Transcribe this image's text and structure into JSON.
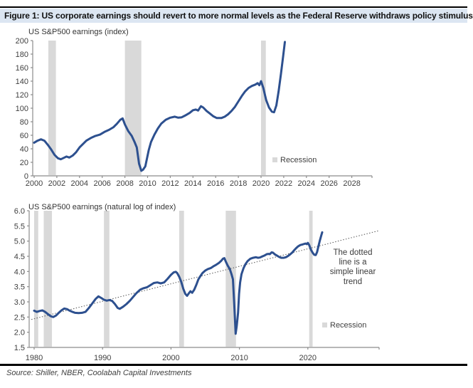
{
  "title": "Figure 1: US corporate earnings should revert to more normal levels as the Federal Reserve withdraws policy stimulus",
  "source": "Source: Shiller, NBER, Coolabah Capital Investments",
  "colors": {
    "line": "#2d508f",
    "recession": "#d9d9d9",
    "title_bg": "#dce6f2",
    "axis": "#8c8c8c",
    "text": "#3f3f3f",
    "trend": "#4d4d4d",
    "rule": "#000000"
  },
  "chart_data": [
    {
      "type": "line",
      "title": "US S&P500 earnings (index)",
      "legend": "Recession",
      "xlim": [
        2000,
        2029.8
      ],
      "ylim": [
        0,
        200
      ],
      "grid": false,
      "legend_position": "inside-right",
      "x_ticks": [
        "2000",
        "2002",
        "2004",
        "2006",
        "2008",
        "2010",
        "2012",
        "2014",
        "2016",
        "2018",
        "2020",
        "2022",
        "2024",
        "2026",
        "2028"
      ],
      "y_ticks": [
        "0",
        "20",
        "40",
        "60",
        "80",
        "100",
        "120",
        "140",
        "160",
        "180",
        "200"
      ],
      "recessions": [
        [
          2001.25,
          2001.92
        ],
        [
          2008.0,
          2009.45
        ],
        [
          2020.0,
          2020.42
        ]
      ],
      "series": [
        {
          "name": "US S&P500 earnings (index)",
          "points": [
            [
              2000.0,
              49
            ],
            [
              2000.3,
              52
            ],
            [
              2000.6,
              54
            ],
            [
              2000.9,
              52
            ],
            [
              2001.2,
              46
            ],
            [
              2001.5,
              39
            ],
            [
              2001.8,
              31
            ],
            [
              2002.1,
              26
            ],
            [
              2002.35,
              24.5
            ],
            [
              2002.6,
              26.5
            ],
            [
              2002.85,
              28.5
            ],
            [
              2003.1,
              27
            ],
            [
              2003.4,
              30
            ],
            [
              2003.7,
              35
            ],
            [
              2004.0,
              42
            ],
            [
              2004.3,
              47
            ],
            [
              2004.6,
              52
            ],
            [
              2005.0,
              56
            ],
            [
              2005.4,
              59
            ],
            [
              2005.8,
              61
            ],
            [
              2006.2,
              65
            ],
            [
              2006.6,
              68
            ],
            [
              2007.0,
              72
            ],
            [
              2007.3,
              77
            ],
            [
              2007.6,
              83
            ],
            [
              2007.8,
              85
            ],
            [
              2008.0,
              76
            ],
            [
              2008.3,
              66
            ],
            [
              2008.6,
              59
            ],
            [
              2008.85,
              50
            ],
            [
              2009.05,
              42
            ],
            [
              2009.25,
              18
            ],
            [
              2009.45,
              7.5
            ],
            [
              2009.6,
              9
            ],
            [
              2009.8,
              14
            ],
            [
              2009.95,
              26
            ],
            [
              2010.1,
              38
            ],
            [
              2010.3,
              50
            ],
            [
              2010.6,
              61
            ],
            [
              2010.9,
              70
            ],
            [
              2011.2,
              77
            ],
            [
              2011.6,
              83
            ],
            [
              2012.0,
              86
            ],
            [
              2012.4,
              87.5
            ],
            [
              2012.7,
              86
            ],
            [
              2013.0,
              86.5
            ],
            [
              2013.3,
              89
            ],
            [
              2013.7,
              93
            ],
            [
              2014.0,
              97
            ],
            [
              2014.25,
              98
            ],
            [
              2014.45,
              96.5
            ],
            [
              2014.7,
              103
            ],
            [
              2014.9,
              101
            ],
            [
              2015.2,
              96
            ],
            [
              2015.5,
              92
            ],
            [
              2015.8,
              88
            ],
            [
              2016.1,
              85.5
            ],
            [
              2016.5,
              85.5
            ],
            [
              2016.8,
              87.5
            ],
            [
              2017.1,
              91
            ],
            [
              2017.4,
              96
            ],
            [
              2017.7,
              102
            ],
            [
              2018.0,
              110
            ],
            [
              2018.3,
              118
            ],
            [
              2018.6,
              125
            ],
            [
              2018.9,
              130
            ],
            [
              2019.2,
              133
            ],
            [
              2019.5,
              135
            ],
            [
              2019.7,
              137
            ],
            [
              2019.85,
              134
            ],
            [
              2020.0,
              140
            ],
            [
              2020.2,
              130
            ],
            [
              2020.45,
              112
            ],
            [
              2020.7,
              101
            ],
            [
              2020.95,
              95
            ],
            [
              2021.15,
              94
            ],
            [
              2021.35,
              104
            ],
            [
              2021.55,
              125
            ],
            [
              2021.75,
              150
            ],
            [
              2021.95,
              177
            ],
            [
              2022.1,
              198
            ]
          ]
        }
      ]
    },
    {
      "type": "line",
      "title": "US S&P500 earnings (natural log of index)",
      "legend": "Recession",
      "annotation": [
        "The dotted",
        "line is a",
        "simple linear",
        "trend"
      ],
      "xlim": [
        1979.3,
        2030.5
      ],
      "ylim": [
        1.5,
        6.0
      ],
      "grid": false,
      "legend_position": "inside-right",
      "x_ticks": [
        "1980",
        "1990",
        "2000",
        "2010",
        "2020"
      ],
      "y_ticks": [
        "1.5",
        "2.0",
        "2.5",
        "3.0",
        "3.5",
        "4.0",
        "4.5",
        "5.0",
        "5.5",
        "6.0"
      ],
      "recessions": [
        [
          1980.0,
          1980.6
        ],
        [
          1981.4,
          1982.6
        ],
        [
          1990.2,
          1991.0
        ],
        [
          2001.2,
          2001.9
        ],
        [
          2008.0,
          2009.5
        ],
        [
          2020.2,
          2020.7
        ]
      ],
      "trend": {
        "label": "simple linear trend",
        "start": [
          1979.6,
          2.42
        ],
        "end": [
          2030.5,
          5.35
        ]
      },
      "series": [
        {
          "name": "US S&P500 earnings (natural log of index)",
          "points": [
            [
              1980.0,
              2.71
            ],
            [
              1980.4,
              2.67
            ],
            [
              1980.8,
              2.7
            ],
            [
              1981.2,
              2.72
            ],
            [
              1981.6,
              2.67
            ],
            [
              1982.0,
              2.6
            ],
            [
              1982.4,
              2.53
            ],
            [
              1982.8,
              2.5
            ],
            [
              1983.2,
              2.55
            ],
            [
              1983.6,
              2.64
            ],
            [
              1984.0,
              2.72
            ],
            [
              1984.4,
              2.78
            ],
            [
              1984.8,
              2.76
            ],
            [
              1985.2,
              2.71
            ],
            [
              1985.6,
              2.67
            ],
            [
              1986.0,
              2.64
            ],
            [
              1986.5,
              2.63
            ],
            [
              1987.0,
              2.64
            ],
            [
              1987.5,
              2.67
            ],
            [
              1988.0,
              2.8
            ],
            [
              1988.5,
              2.95
            ],
            [
              1989.0,
              3.1
            ],
            [
              1989.4,
              3.18
            ],
            [
              1989.8,
              3.13
            ],
            [
              1990.2,
              3.07
            ],
            [
              1990.6,
              3.04
            ],
            [
              1991.0,
              3.06
            ],
            [
              1991.4,
              3.03
            ],
            [
              1991.8,
              2.93
            ],
            [
              1992.2,
              2.8
            ],
            [
              1992.5,
              2.77
            ],
            [
              1993.0,
              2.84
            ],
            [
              1993.5,
              2.93
            ],
            [
              1994.0,
              3.04
            ],
            [
              1994.5,
              3.17
            ],
            [
              1995.0,
              3.3
            ],
            [
              1995.5,
              3.4
            ],
            [
              1996.0,
              3.45
            ],
            [
              1996.5,
              3.48
            ],
            [
              1997.0,
              3.55
            ],
            [
              1997.5,
              3.62
            ],
            [
              1998.0,
              3.64
            ],
            [
              1998.5,
              3.61
            ],
            [
              1999.0,
              3.64
            ],
            [
              1999.5,
              3.76
            ],
            [
              2000.0,
              3.89
            ],
            [
              2000.4,
              3.97
            ],
            [
              2000.7,
              3.99
            ],
            [
              2000.9,
              3.95
            ],
            [
              2001.2,
              3.83
            ],
            [
              2001.5,
              3.66
            ],
            [
              2001.8,
              3.43
            ],
            [
              2002.1,
              3.26
            ],
            [
              2002.35,
              3.2
            ],
            [
              2002.6,
              3.28
            ],
            [
              2002.85,
              3.35
            ],
            [
              2003.1,
              3.3
            ],
            [
              2003.4,
              3.4
            ],
            [
              2003.7,
              3.56
            ],
            [
              2004.0,
              3.74
            ],
            [
              2004.3,
              3.85
            ],
            [
              2004.6,
              3.95
            ],
            [
              2005.0,
              4.03
            ],
            [
              2005.4,
              4.08
            ],
            [
              2005.8,
              4.11
            ],
            [
              2006.2,
              4.17
            ],
            [
              2006.6,
              4.22
            ],
            [
              2007.0,
              4.28
            ],
            [
              2007.3,
              4.34
            ],
            [
              2007.6,
              4.42
            ],
            [
              2007.8,
              4.44
            ],
            [
              2008.0,
              4.33
            ],
            [
              2008.3,
              4.19
            ],
            [
              2008.6,
              4.08
            ],
            [
              2008.85,
              3.91
            ],
            [
              2009.05,
              3.74
            ],
            [
              2009.25,
              2.89
            ],
            [
              2009.45,
              1.95
            ],
            [
              2009.6,
              2.2
            ],
            [
              2009.8,
              2.64
            ],
            [
              2009.95,
              3.26
            ],
            [
              2010.1,
              3.64
            ],
            [
              2010.3,
              3.91
            ],
            [
              2010.6,
              4.11
            ],
            [
              2010.9,
              4.25
            ],
            [
              2011.2,
              4.34
            ],
            [
              2011.6,
              4.42
            ],
            [
              2012.0,
              4.45
            ],
            [
              2012.4,
              4.47
            ],
            [
              2012.7,
              4.45
            ],
            [
              2013.0,
              4.46
            ],
            [
              2013.3,
              4.49
            ],
            [
              2013.7,
              4.53
            ],
            [
              2014.0,
              4.57
            ],
            [
              2014.25,
              4.58
            ],
            [
              2014.45,
              4.57
            ],
            [
              2014.7,
              4.63
            ],
            [
              2014.9,
              4.62
            ],
            [
              2015.2,
              4.56
            ],
            [
              2015.5,
              4.52
            ],
            [
              2015.8,
              4.48
            ],
            [
              2016.1,
              4.45
            ],
            [
              2016.5,
              4.45
            ],
            [
              2016.8,
              4.47
            ],
            [
              2017.1,
              4.51
            ],
            [
              2017.4,
              4.56
            ],
            [
              2017.7,
              4.62
            ],
            [
              2018.0,
              4.7
            ],
            [
              2018.3,
              4.77
            ],
            [
              2018.6,
              4.83
            ],
            [
              2018.9,
              4.87
            ],
            [
              2019.2,
              4.89
            ],
            [
              2019.5,
              4.91
            ],
            [
              2019.7,
              4.92
            ],
            [
              2019.85,
              4.9
            ],
            [
              2020.0,
              4.94
            ],
            [
              2020.2,
              4.87
            ],
            [
              2020.45,
              4.72
            ],
            [
              2020.7,
              4.62
            ],
            [
              2020.95,
              4.55
            ],
            [
              2021.15,
              4.54
            ],
            [
              2021.35,
              4.64
            ],
            [
              2021.55,
              4.83
            ],
            [
              2021.75,
              5.01
            ],
            [
              2021.95,
              5.18
            ],
            [
              2022.1,
              5.29
            ]
          ]
        }
      ]
    }
  ]
}
